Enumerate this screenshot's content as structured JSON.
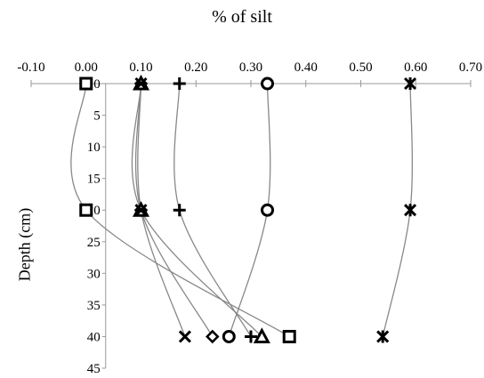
{
  "chart_data": {
    "type": "line",
    "title": "% of silt",
    "xlabel": "% of silt",
    "ylabel": "Depth (cm)",
    "xlim": [
      -0.1,
      0.7
    ],
    "ylim": [
      0,
      45
    ],
    "y_inverted": true,
    "x_axis_position": "top",
    "x_ticks": [
      "-0.10",
      "0.00",
      "0.10",
      "0.20",
      "0.30",
      "0.40",
      "0.50",
      "0.60",
      "0.70"
    ],
    "x_tick_values": [
      -0.1,
      0,
      0.1,
      0.2,
      0.3,
      0.4,
      0.5,
      0.6,
      0.7
    ],
    "y_ticks": [
      "0",
      "5",
      "10",
      "15",
      "20",
      "25",
      "30",
      "35",
      "40",
      "45"
    ],
    "y_tick_values": [
      0,
      5,
      10,
      15,
      20,
      25,
      30,
      35,
      40,
      45
    ],
    "grid": false,
    "legend": "none",
    "series": [
      {
        "marker": "square",
        "points": [
          [
            0.0,
            0
          ],
          [
            0.0,
            20
          ],
          [
            0.37,
            40
          ]
        ]
      },
      {
        "marker": "diamond",
        "points": [
          [
            0.1,
            0
          ],
          [
            0.1,
            20
          ],
          [
            0.23,
            40
          ]
        ]
      },
      {
        "marker": "triangle",
        "points": [
          [
            0.1,
            0
          ],
          [
            0.1,
            20
          ],
          [
            0.32,
            40
          ]
        ]
      },
      {
        "marker": "x",
        "points": [
          [
            0.1,
            0
          ],
          [
            0.1,
            20
          ],
          [
            0.18,
            40
          ]
        ]
      },
      {
        "marker": "asterisk",
        "points": [
          [
            0.59,
            0
          ],
          [
            0.59,
            20
          ],
          [
            0.54,
            40
          ]
        ]
      },
      {
        "marker": "circle",
        "points": [
          [
            0.33,
            0
          ],
          [
            0.33,
            20
          ],
          [
            0.26,
            40
          ]
        ]
      },
      {
        "marker": "plus",
        "points": [
          [
            0.17,
            0
          ],
          [
            0.17,
            20
          ],
          [
            0.3,
            40
          ]
        ]
      }
    ]
  }
}
